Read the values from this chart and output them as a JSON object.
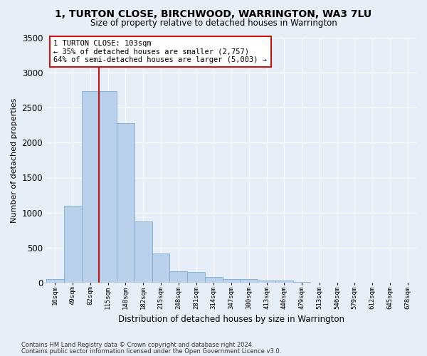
{
  "title": "1, TURTON CLOSE, BIRCHWOOD, WARRINGTON, WA3 7LU",
  "subtitle": "Size of property relative to detached houses in Warrington",
  "xlabel": "Distribution of detached houses by size in Warrington",
  "ylabel": "Number of detached properties",
  "bar_color": "#b8d0ea",
  "bar_edge_color": "#7aadd4",
  "vline_color": "#cc1111",
  "vline_x_index": 2.5,
  "annotation_text": "1 TURTON CLOSE: 103sqm\n← 35% of detached houses are smaller (2,757)\n64% of semi-detached houses are larger (5,003) →",
  "annotation_box_color": "#ffffff",
  "annotation_box_edge": "#cc1111",
  "background_color": "#e8eef8",
  "grid_color": "#ffffff",
  "categories": [
    "16sqm",
    "49sqm",
    "82sqm",
    "115sqm",
    "148sqm",
    "182sqm",
    "215sqm",
    "248sqm",
    "281sqm",
    "314sqm",
    "347sqm",
    "380sqm",
    "413sqm",
    "446sqm",
    "479sqm",
    "513sqm",
    "546sqm",
    "579sqm",
    "612sqm",
    "645sqm",
    "678sqm"
  ],
  "values": [
    50,
    1100,
    2730,
    2730,
    2280,
    875,
    420,
    165,
    155,
    85,
    55,
    50,
    30,
    28,
    10,
    5,
    2,
    1,
    0,
    0,
    0
  ],
  "footer1": "Contains HM Land Registry data © Crown copyright and database right 2024.",
  "footer2": "Contains public sector information licensed under the Open Government Licence v3.0.",
  "ylim": [
    0,
    3500
  ],
  "yticks": [
    0,
    500,
    1000,
    1500,
    2000,
    2500,
    3000,
    3500
  ]
}
